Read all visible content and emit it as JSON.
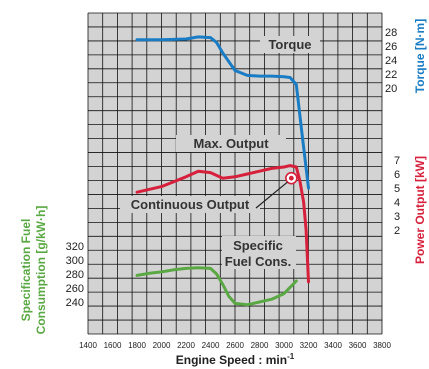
{
  "chart_data": {
    "type": "line",
    "xlabel": "Engine Speed : min",
    "xlabel_sup": "-1",
    "x_ticks": [
      1400,
      1600,
      1800,
      2000,
      2200,
      2400,
      2600,
      2800,
      3000,
      3200,
      3400,
      3600,
      3800
    ],
    "xlim": [
      1400,
      3800
    ],
    "series": [
      {
        "name": "Torque",
        "axis": "Torque [N·m]",
        "color": "#1a7cc4",
        "ticks": [
          20,
          22,
          24,
          26,
          28
        ],
        "x": [
          1800,
          2000,
          2200,
          2300,
          2400,
          2450,
          2500,
          2600,
          2700,
          2800,
          2900,
          3000,
          3050,
          3100,
          3150,
          3200
        ],
        "values": [
          26.9,
          26.9,
          27.0,
          27.3,
          27.2,
          26.5,
          25.0,
          22.5,
          21.8,
          21.7,
          21.7,
          21.6,
          21.5,
          20.5,
          13.0,
          5.7
        ]
      },
      {
        "name": "Max. Output",
        "axis": "Power Output [kW]",
        "color": "#d6203c",
        "ticks": [
          2,
          3,
          4,
          5,
          6,
          7
        ],
        "x": [
          1800,
          2000,
          2200,
          2300,
          2400,
          2500,
          2600,
          2700,
          2800,
          2900,
          3000,
          3050,
          3100,
          3130,
          3160,
          3180,
          3200
        ],
        "values": [
          4.7,
          5.1,
          5.8,
          6.2,
          6.1,
          5.7,
          5.8,
          6.0,
          6.2,
          6.4,
          6.5,
          6.6,
          6.5,
          5.5,
          4.0,
          2.0,
          -1.7
        ]
      },
      {
        "name": "Specific Fuel Cons.",
        "axis": "Specification Fuel Consumption [g/kW·h]",
        "color": "#5aa843",
        "ticks": [
          240,
          260,
          280,
          300,
          320
        ],
        "x": [
          1800,
          1900,
          2000,
          2100,
          2200,
          2300,
          2400,
          2450,
          2500,
          2550,
          2600,
          2700,
          2800,
          2900,
          3000,
          3100
        ],
        "values": [
          278,
          281,
          283,
          286,
          288,
          289,
          288,
          280,
          265,
          248,
          238,
          236,
          240,
          244,
          252,
          270
        ]
      }
    ],
    "continuous_output_point": {
      "x": 3060,
      "value": 5.7
    },
    "annotations": {
      "torque": "Torque",
      "max_output": "Max. Output",
      "continuous_output": "Continuous Output",
      "specific_fuel_line1": "Specific",
      "specific_fuel_line2": "Fuel Cons."
    },
    "right_axis_titles": {
      "torque": "Torque [N·m]",
      "power": "Power Output [kW]"
    },
    "left_axis_title_line1": "Specification Fuel",
    "left_axis_title_line2": "Consumption [g/kW·h]",
    "grid": true
  }
}
